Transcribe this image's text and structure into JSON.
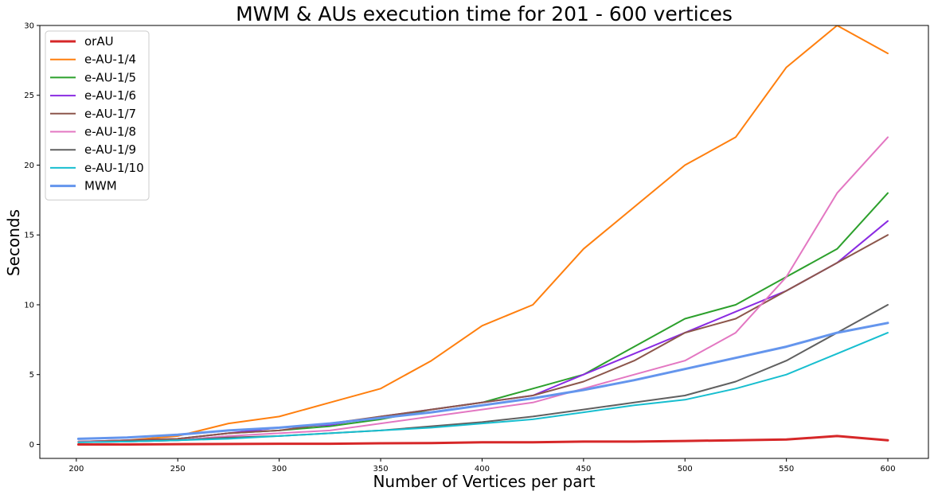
{
  "chart_data": {
    "type": "line",
    "title": "MWM & AUs execution time for 201 - 600 vertices",
    "xlabel": "Number of Vertices per part",
    "ylabel": "Seconds",
    "xlim": [
      182,
      620
    ],
    "ylim": [
      -1,
      30
    ],
    "xticks": [
      200,
      250,
      300,
      350,
      400,
      450,
      500,
      550,
      600
    ],
    "yticks": [
      0,
      5,
      10,
      15,
      20,
      25,
      30
    ],
    "grid": false,
    "legend_position": "upper-left",
    "x": [
      201,
      225,
      250,
      275,
      300,
      325,
      350,
      375,
      400,
      425,
      450,
      475,
      500,
      525,
      550,
      575,
      600
    ],
    "series": [
      {
        "name": "orAU",
        "color": "#d62728",
        "linewidth": 3,
        "values": [
          0.0,
          0.0,
          0.02,
          0.03,
          0.05,
          0.05,
          0.08,
          0.1,
          0.15,
          0.15,
          0.2,
          0.2,
          0.25,
          0.3,
          0.35,
          0.6,
          0.3
        ]
      },
      {
        "name": "e-AU-1/4",
        "color": "#ff7f0e",
        "linewidth": 2,
        "values": [
          0.2,
          0.3,
          0.6,
          1.5,
          2.0,
          3.0,
          4.0,
          6.0,
          8.5,
          10.0,
          14.0,
          17.0,
          20.0,
          22.0,
          27.0,
          30.0,
          28.0
        ]
      },
      {
        "name": "e-AU-1/5",
        "color": "#2ca02c",
        "linewidth": 2,
        "values": [
          0.2,
          0.25,
          0.4,
          0.8,
          1.0,
          1.3,
          1.8,
          2.5,
          3.0,
          4.0,
          5.0,
          7.0,
          9.0,
          10.0,
          12.0,
          14.0,
          18.0
        ]
      },
      {
        "name": "e-AU-1/6",
        "color": "#8a2be2",
        "linewidth": 2,
        "values": [
          0.2,
          0.3,
          0.4,
          0.8,
          1.2,
          1.4,
          2.0,
          2.5,
          3.0,
          3.5,
          5.0,
          6.5,
          8.0,
          9.5,
          11.0,
          13.0,
          16.0
        ]
      },
      {
        "name": "e-AU-1/7",
        "color": "#8c564b",
        "linewidth": 2,
        "values": [
          0.2,
          0.3,
          0.4,
          0.8,
          1.0,
          1.5,
          2.0,
          2.5,
          3.0,
          3.5,
          4.5,
          6.0,
          8.0,
          9.0,
          11.0,
          13.0,
          15.0
        ]
      },
      {
        "name": "e-AU-1/8",
        "color": "#e377c2",
        "linewidth": 2,
        "values": [
          0.2,
          0.2,
          0.3,
          0.6,
          0.8,
          1.0,
          1.5,
          2.0,
          2.5,
          3.0,
          4.0,
          5.0,
          6.0,
          8.0,
          12.0,
          18.0,
          22.0
        ]
      },
      {
        "name": "e-AU-1/9",
        "color": "#606060",
        "linewidth": 2,
        "values": [
          0.15,
          0.2,
          0.3,
          0.5,
          0.6,
          0.8,
          1.0,
          1.3,
          1.6,
          2.0,
          2.5,
          3.0,
          3.5,
          4.5,
          6.0,
          8.0,
          10.0
        ]
      },
      {
        "name": "e-AU-1/10",
        "color": "#17becf",
        "linewidth": 2,
        "values": [
          0.15,
          0.2,
          0.3,
          0.4,
          0.6,
          0.8,
          1.0,
          1.2,
          1.5,
          1.8,
          2.3,
          2.8,
          3.2,
          4.0,
          5.0,
          6.5,
          8.0
        ]
      },
      {
        "name": "MWM",
        "color": "#6495ed",
        "linewidth": 3,
        "values": [
          0.4,
          0.5,
          0.7,
          1.0,
          1.2,
          1.5,
          1.9,
          2.3,
          2.8,
          3.3,
          3.9,
          4.6,
          5.4,
          6.2,
          7.0,
          8.0,
          8.7
        ]
      }
    ]
  }
}
